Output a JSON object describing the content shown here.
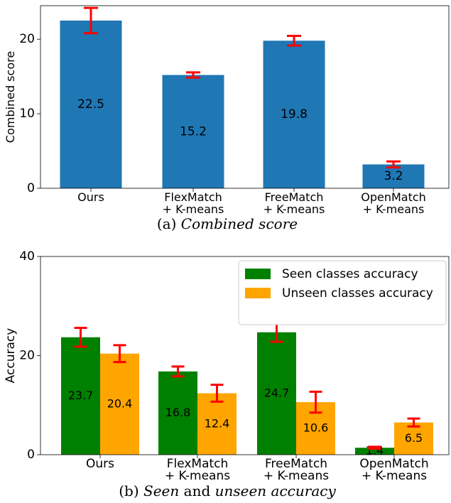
{
  "chart_data": [
    {
      "type": "bar",
      "title": "",
      "ylabel": "Combined score",
      "xlabel": "",
      "ylim": [
        0,
        24.5
      ],
      "yticks": [
        0,
        10,
        20
      ],
      "categories": [
        [
          "Ours"
        ],
        [
          "FlexMatch",
          "+ K-means"
        ],
        [
          "FreeMatch",
          "+ K-means"
        ],
        [
          "OpenMatch",
          "+ K-means"
        ]
      ],
      "series": [
        {
          "color": "#1f77b4",
          "values": [
            22.5,
            15.2,
            19.8,
            3.2
          ],
          "labels": [
            "22.5",
            "15.2",
            "19.8",
            "3.2"
          ],
          "errors": [
            1.7,
            0.35,
            0.65,
            0.4
          ]
        }
      ],
      "error_color": "#ff0000",
      "grid": false,
      "caption_prefix": "(a) ",
      "caption_italic": "Combined score"
    },
    {
      "type": "bar",
      "title": "",
      "ylabel": "Accuracy",
      "xlabel": "",
      "ylim": [
        0,
        40
      ],
      "yticks": [
        0,
        20,
        40
      ],
      "categories": [
        [
          "Ours"
        ],
        [
          "FlexMatch",
          "+ K-means"
        ],
        [
          "FreeMatch",
          "+ K-means"
        ],
        [
          "OpenMatch",
          "+ K-means"
        ]
      ],
      "series": [
        {
          "name": "Seen classes accuracy",
          "color": "#008000",
          "values": [
            23.7,
            16.8,
            24.7,
            1.4
          ],
          "labels": [
            "23.7",
            "16.8",
            "24.7",
            "1.4"
          ],
          "errors": [
            1.9,
            1.0,
            1.9,
            0.2
          ]
        },
        {
          "name": "Unseen classes accuracy",
          "color": "#ffa500",
          "values": [
            20.4,
            12.4,
            10.6,
            6.5
          ],
          "labels": [
            "20.4",
            "12.4",
            "10.6",
            "6.5"
          ],
          "errors": [
            1.7,
            1.7,
            2.1,
            0.8
          ]
        }
      ],
      "error_color": "#ff0000",
      "legend_position": "top-right",
      "grid": false,
      "caption_parts": [
        {
          "text": "(b) ",
          "italic": false
        },
        {
          "text": "Seen",
          "italic": true
        },
        {
          "text": " and ",
          "italic": false
        },
        {
          "text": "unseen accuracy",
          "italic": true
        }
      ]
    }
  ]
}
